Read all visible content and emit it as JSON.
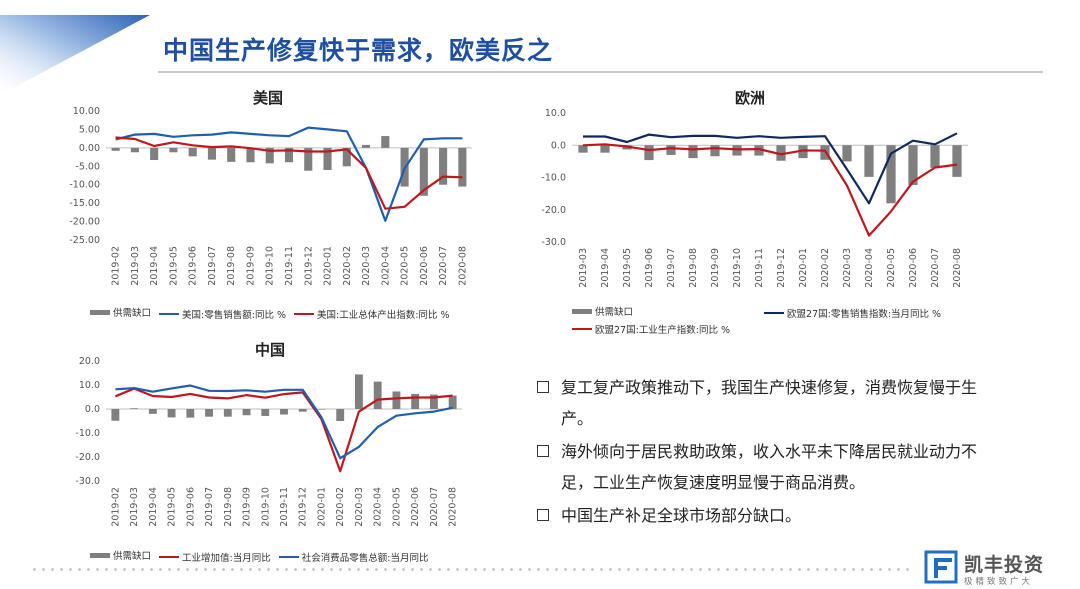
{
  "page": {
    "title": "中国生产修复快于需求，欧美反之",
    "accent_color": "#1e4fa0"
  },
  "bullets": [
    "复工复产政策推动下，我国生产快速修复，消费恢复慢于生产。",
    "海外倾向于居民救助政策，收入水平未下降居民就业动力不足，工业生产恢复速度明显慢于商品消费。",
    "中国生产补足全球市场部分缺口。"
  ],
  "logo": {
    "name": "凯丰投资",
    "tagline": "极精致致广大",
    "icon": "kf-logo-icon"
  },
  "chart_data": [
    {
      "id": "us",
      "type": "bar+line",
      "title": "美国",
      "categories": [
        "2019-02",
        "2019-03",
        "2019-04",
        "2019-05",
        "2019-06",
        "2019-07",
        "2019-08",
        "2019-09",
        "2019-10",
        "2019-11",
        "2019-12",
        "2020-01",
        "2020-02",
        "2020-03",
        "2020-04",
        "2020-05",
        "2020-06",
        "2020-07",
        "2020-08"
      ],
      "ylim": [
        -25,
        10
      ],
      "yticks": [
        10,
        5,
        0,
        -5,
        -10,
        -15,
        -20,
        -25
      ],
      "ytick_labels": [
        "10.00",
        "5.00",
        "0.00",
        "-5.00",
        "-10.00",
        "-15.00",
        "-20.00",
        "-25.00"
      ],
      "series": [
        {
          "name": "供需缺口",
          "kind": "bar",
          "color": "#7f7f7f",
          "values": [
            -0.8,
            -1.2,
            -3.3,
            -1.2,
            -2.3,
            -3.2,
            -3.8,
            -3.9,
            -4.2,
            -3.9,
            -6.2,
            -6.0,
            -5.0,
            0.8,
            3.2,
            -10.5,
            -13.0,
            -10.0,
            -10.5
          ]
        },
        {
          "name": "美国:零售销售额:同比 %",
          "kind": "line",
          "color": "#1f5fae",
          "values": [
            2.3,
            3.6,
            3.8,
            3.0,
            3.4,
            3.6,
            4.2,
            3.8,
            3.4,
            3.2,
            5.5,
            5.0,
            4.5,
            -5.5,
            -19.8,
            -5.6,
            2.3,
            2.6,
            2.6
          ]
        },
        {
          "name": "美国:工业总体产出指数:同比 %",
          "kind": "line",
          "color": "#c0171d",
          "values": [
            2.8,
            2.4,
            0.5,
            1.5,
            0.7,
            0.2,
            0.4,
            -0.1,
            -0.8,
            -0.7,
            -1.0,
            -1.0,
            -0.4,
            -5.5,
            -16.5,
            -16.0,
            -11.5,
            -7.8,
            -8.0
          ]
        }
      ]
    },
    {
      "id": "eu",
      "type": "bar+line",
      "title": "欧洲",
      "categories": [
        "2019-03",
        "2019-04",
        "2019-05",
        "2019-06",
        "2019-07",
        "2019-08",
        "2019-09",
        "2019-10",
        "2019-11",
        "2019-12",
        "2020-01",
        "2020-02",
        "2020-03",
        "2020-04",
        "2020-05",
        "2020-06",
        "2020-07",
        "2020-08"
      ],
      "ylim": [
        -30,
        10
      ],
      "yticks": [
        10,
        0,
        -10,
        -20,
        -30
      ],
      "ytick_labels": [
        "10.0",
        "0.0",
        "-10.0",
        "-20.0",
        "-30.0"
      ],
      "series": [
        {
          "name": "供需缺口",
          "kind": "bar",
          "color": "#7f7f7f",
          "values": [
            -2.3,
            -2.3,
            -1.3,
            -4.6,
            -3.0,
            -4.0,
            -3.4,
            -3.2,
            -3.2,
            -4.8,
            -4.0,
            -4.5,
            -5.0,
            -9.8,
            -18.0,
            -12.3,
            -7.0,
            -9.8
          ]
        },
        {
          "name": "欧盟27国:零售销售指数:当月同比 %",
          "kind": "line",
          "color": "#0f2a5e",
          "values": [
            2.7,
            2.7,
            1.0,
            3.3,
            2.5,
            2.9,
            2.9,
            2.3,
            2.8,
            2.3,
            2.6,
            2.8,
            -7.5,
            -18.0,
            -2.6,
            1.4,
            0.3,
            3.7
          ]
        },
        {
          "name": "欧盟27国:工业生产指数:同比 %",
          "kind": "line",
          "color": "#c0171d",
          "values": [
            0.0,
            0.3,
            -0.4,
            -1.5,
            -0.9,
            -1.3,
            -0.9,
            -1.3,
            -1.2,
            -2.8,
            -1.6,
            -1.7,
            -12.5,
            -28.0,
            -20.5,
            -11.3,
            -6.9,
            -6.0
          ]
        }
      ]
    },
    {
      "id": "cn",
      "type": "bar+line",
      "title": "中国",
      "categories": [
        "2019-02",
        "2019-03",
        "2019-04",
        "2019-05",
        "2019-06",
        "2019-07",
        "2019-08",
        "2019-09",
        "2019-10",
        "2019-11",
        "2019-12",
        "2020-01",
        "2020-02",
        "2020-03",
        "2020-04",
        "2020-05",
        "2020-06",
        "2020-07",
        "2020-08"
      ],
      "ylim": [
        -30,
        20
      ],
      "yticks": [
        20,
        10,
        0,
        -10,
        -20,
        -30
      ],
      "ytick_labels": [
        "20.0",
        "10.0",
        "0.0",
        "-10.0",
        "-20.0",
        "-30.0"
      ],
      "series": [
        {
          "name": "供需缺口",
          "kind": "bar",
          "color": "#7f7f7f",
          "values": [
            -4.9,
            0.3,
            -2.0,
            -3.5,
            -3.6,
            -3.2,
            -3.2,
            -2.6,
            -2.9,
            -2.3,
            -1.1,
            0.0,
            -5.0,
            14.4,
            11.4,
            7.3,
            6.3,
            6.0,
            5.6
          ]
        },
        {
          "name": "工业增加值:当月同比",
          "kind": "line",
          "color": "#c0171d",
          "values": [
            5.3,
            8.5,
            5.4,
            5.0,
            6.3,
            4.8,
            4.4,
            5.8,
            4.7,
            6.2,
            6.9,
            -4.3,
            -25.9,
            -1.1,
            3.9,
            4.4,
            4.8,
            4.8,
            5.6
          ]
        },
        {
          "name": "社会消费品零售总额:当月同比",
          "kind": "line",
          "color": "#1f5fae",
          "values": [
            8.2,
            8.7,
            7.2,
            8.6,
            9.8,
            7.6,
            7.5,
            7.8,
            7.2,
            8.0,
            8.0,
            -3.5,
            -20.5,
            -15.8,
            -7.5,
            -2.8,
            -1.8,
            -1.1,
            0.5
          ]
        }
      ]
    }
  ]
}
